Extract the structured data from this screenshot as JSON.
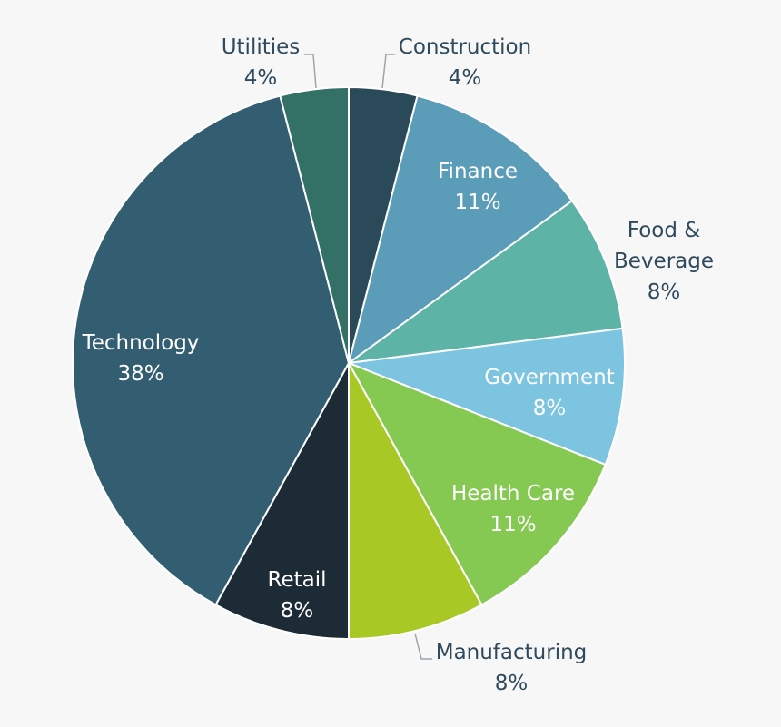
{
  "chart_data": {
    "type": "pie",
    "title": "",
    "start": "12 o'clock",
    "direction": "clockwise",
    "slices": [
      {
        "key": "construction",
        "label": "Construction",
        "pct_label": "4%",
        "value": 4,
        "color": "#2a4a5a",
        "label_style": "outside"
      },
      {
        "key": "finance",
        "label": "Finance",
        "pct_label": "11%",
        "value": 11,
        "color": "#5b9cb8",
        "label_style": "inside"
      },
      {
        "key": "food",
        "label": "Food &",
        "label_line2": "Beverage",
        "pct_label": "8%",
        "value": 8,
        "color": "#5db3a6",
        "label_style": "outside"
      },
      {
        "key": "government",
        "label": "Government",
        "pct_label": "8%",
        "value": 8,
        "color": "#7cc4e0",
        "label_style": "inside"
      },
      {
        "key": "healthcare",
        "label": "Health Care",
        "pct_label": "11%",
        "value": 11,
        "color": "#86c952",
        "label_style": "inside"
      },
      {
        "key": "manufacturing",
        "label": "Manufacturing",
        "pct_label": "8%",
        "value": 8,
        "color": "#a8c925",
        "label_style": "outside"
      },
      {
        "key": "retail",
        "label": "Retail",
        "pct_label": "8%",
        "value": 8,
        "color": "#1c2b35",
        "label_style": "inside"
      },
      {
        "key": "technology",
        "label": "Technology",
        "pct_label": "38%",
        "value": 38,
        "color": "#335e72",
        "label_style": "inside"
      },
      {
        "key": "utilities",
        "label": "Utilities",
        "pct_label": "4%",
        "value": 4,
        "color": "#337065",
        "label_style": "outside"
      }
    ]
  }
}
